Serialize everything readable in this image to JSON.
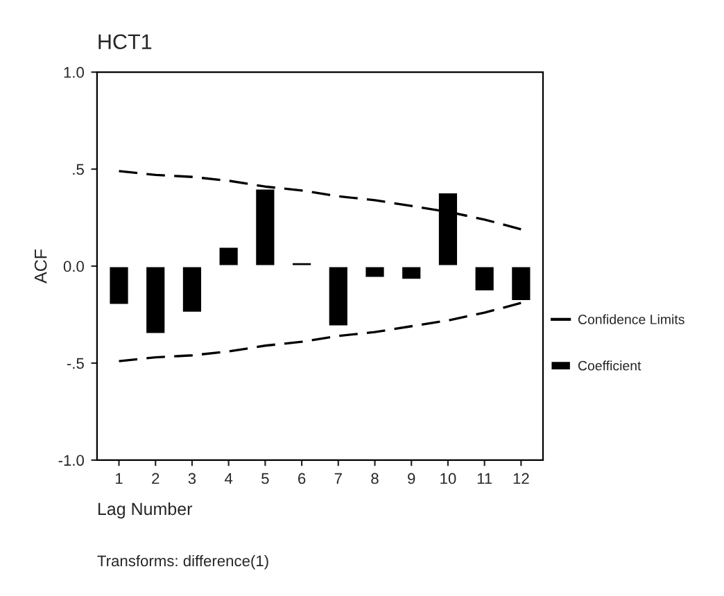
{
  "chart_data": {
    "type": "bar",
    "title": "HCT1",
    "xlabel": "Lag Number",
    "ylabel": "ACF",
    "annotations": [
      "Transforms: difference(1)"
    ],
    "categories": [
      "1",
      "2",
      "3",
      "4",
      "5",
      "6",
      "7",
      "8",
      "9",
      "10",
      "11",
      "12"
    ],
    "series": [
      {
        "name": "Confidence Limits",
        "type": "line",
        "color": "#000000",
        "line_style": "dashed",
        "values": [
          0.49,
          0.47,
          0.46,
          0.44,
          0.41,
          0.39,
          0.36,
          0.34,
          0.31,
          0.28,
          0.24,
          0.19
        ]
      },
      {
        "type": "line",
        "color": "#000000",
        "line_style": "dashed",
        "values": [
          -0.49,
          -0.47,
          -0.46,
          -0.44,
          -0.41,
          -0.39,
          -0.36,
          -0.34,
          -0.31,
          -0.28,
          -0.24,
          -0.19
        ]
      },
      {
        "name": "Coefficient",
        "color": "#000000",
        "values": [
          -0.2,
          -0.35,
          -0.24,
          0.1,
          0.4,
          0.02,
          -0.31,
          -0.06,
          -0.07,
          0.38,
          -0.13,
          -0.18
        ]
      }
    ],
    "ylim": [
      -1.0,
      1.0
    ],
    "yticks": [
      {
        "value": -1.0,
        "label": "-1.0"
      },
      {
        "value": -0.5,
        "label": "-.5"
      },
      {
        "value": 0.0,
        "label": "0.0"
      },
      {
        "value": 0.5,
        "label": ".5"
      },
      {
        "value": 1.0,
        "label": "1.0"
      }
    ],
    "grid": false,
    "legend": "right"
  }
}
